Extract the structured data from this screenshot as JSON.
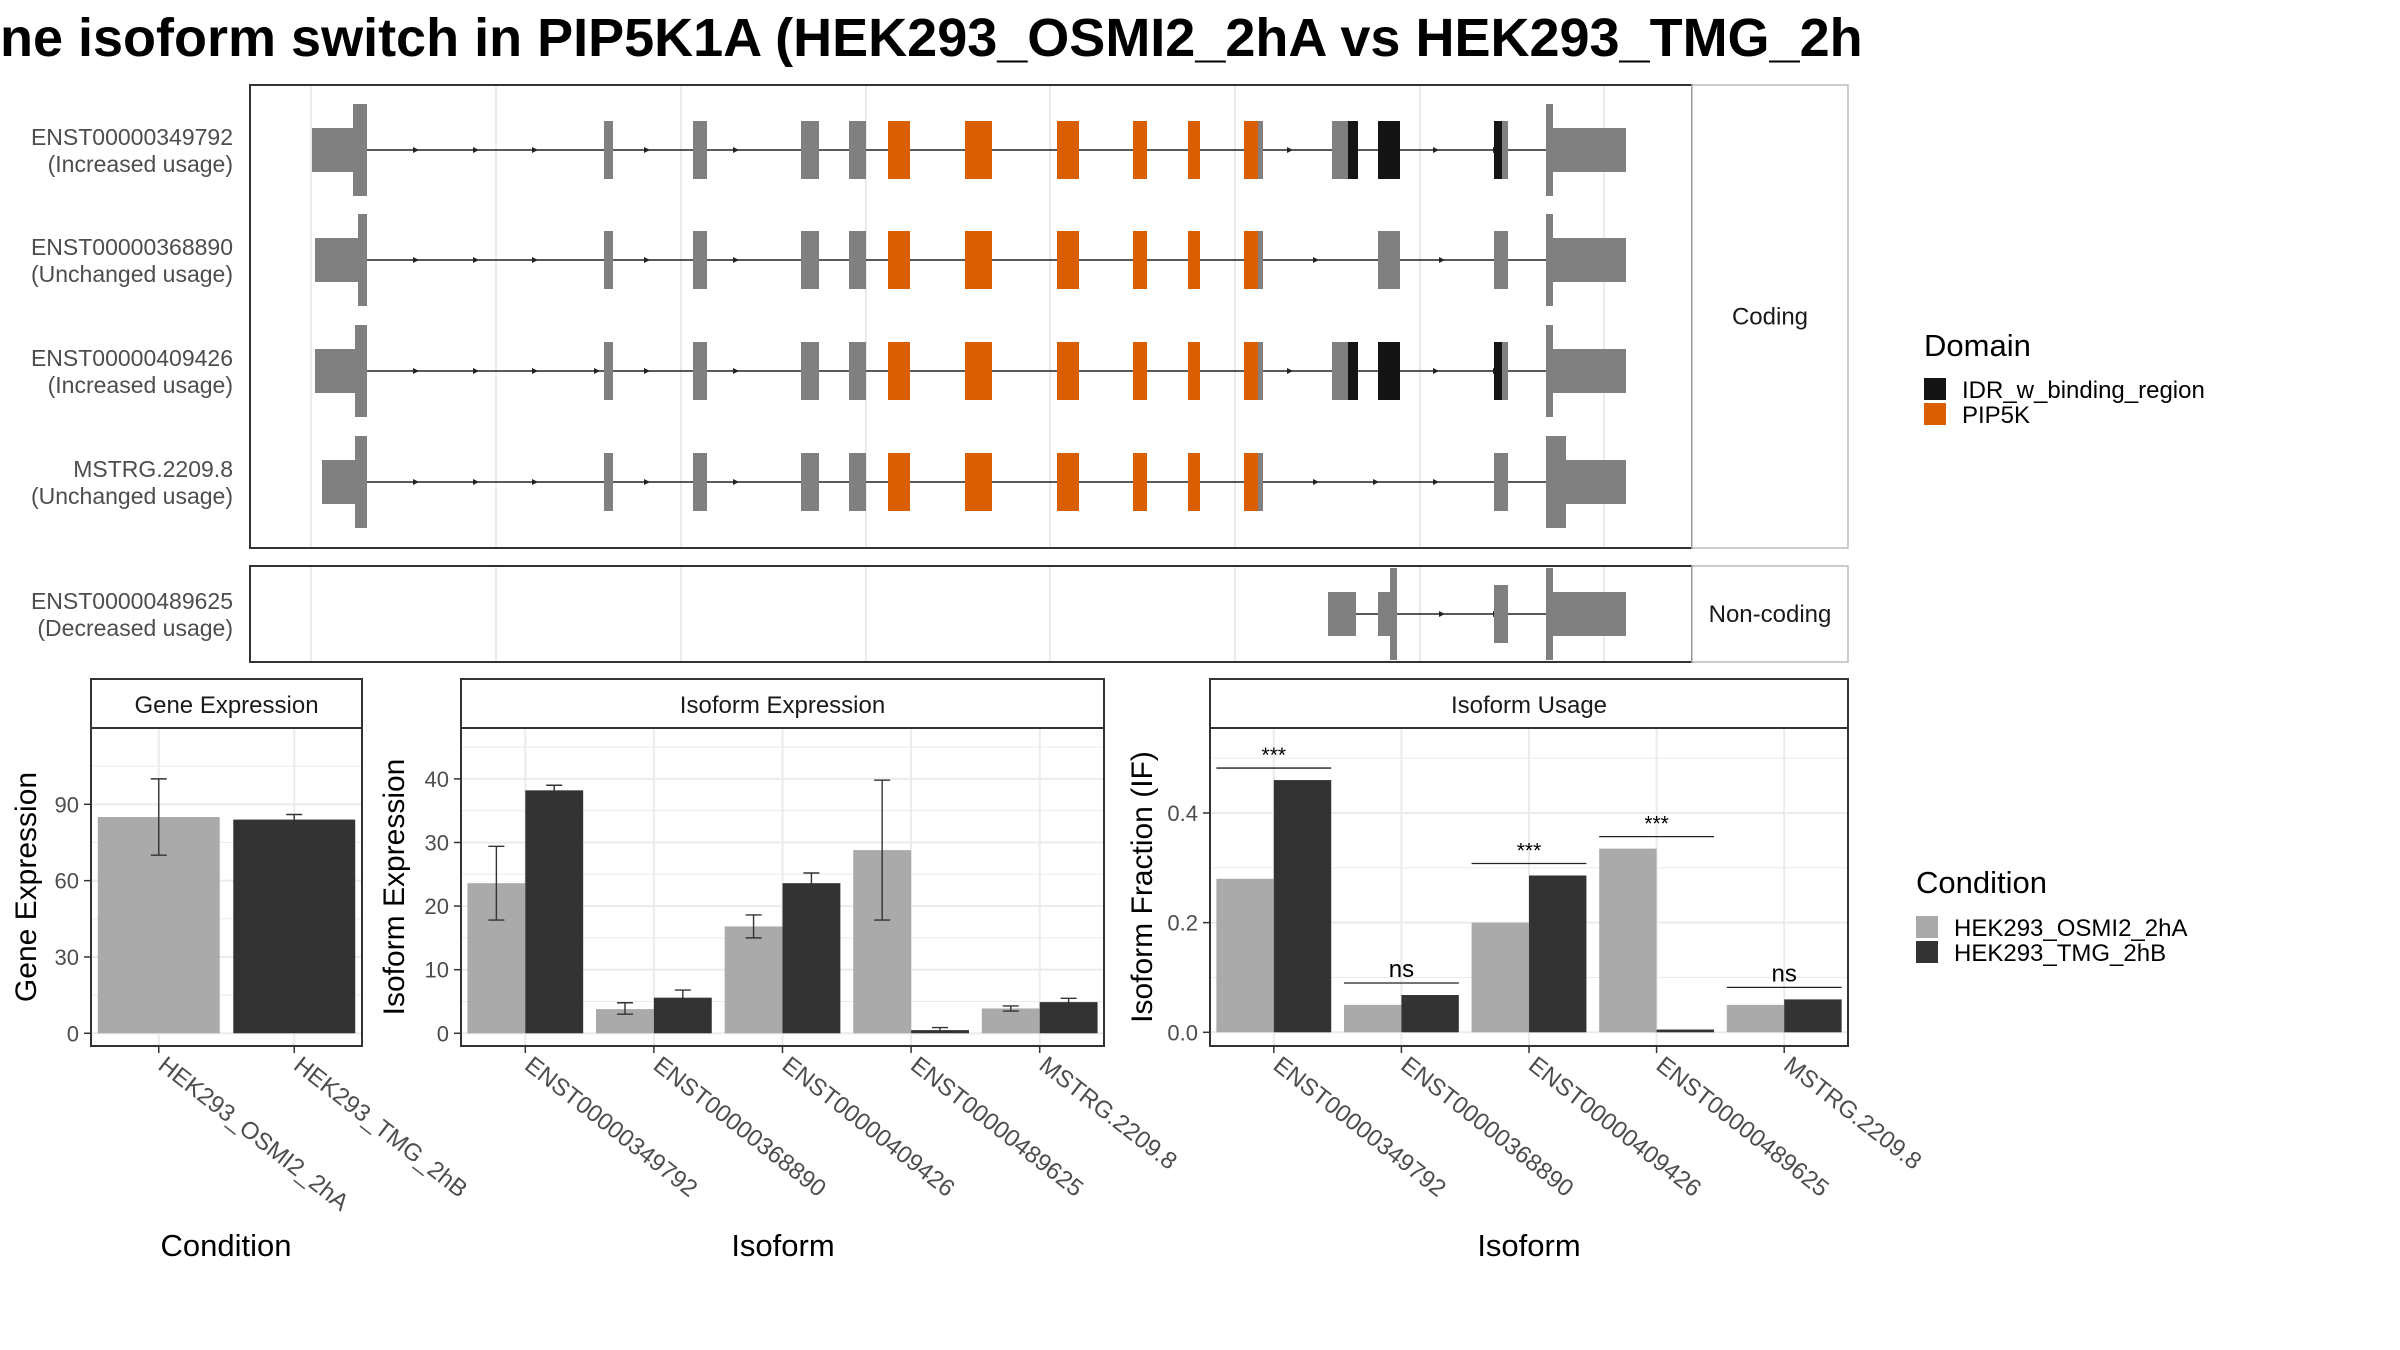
{
  "title": "ne isoform switch in PIP5K1A (HEK293_OSMI2_2hA vs HEK293_TMG_2h",
  "colors": {
    "exon": "#808080",
    "idr": "#141414",
    "pip5k": "#d95f02",
    "light": "#aaaaaa",
    "dark": "#333333",
    "grid": "#ebebeb",
    "frame": "#333333",
    "strip": "#f2f2f2"
  },
  "structure": {
    "coding_label": "Coding",
    "noncoding_label": "Non-coding",
    "legend_title": "Domain",
    "legend_items": [
      {
        "label": "IDR_w_binding_region",
        "color": "#141414"
      },
      {
        "label": "PIP5K",
        "color": "#d95f02"
      }
    ],
    "transcripts": [
      {
        "id": "ENST00000349792",
        "usage": "(Increased usage)",
        "group": "coding"
      },
      {
        "id": "ENST00000368890",
        "usage": "(Unchanged usage)",
        "group": "coding"
      },
      {
        "id": "ENST00000409426",
        "usage": "(Increased usage)",
        "group": "coding"
      },
      {
        "id": "MSTRG.2209.8",
        "usage": "(Unchanged usage)",
        "group": "coding"
      },
      {
        "id": "ENST00000489625",
        "usage": "(Decreased usage)",
        "group": "noncoding"
      }
    ]
  },
  "condition_legend": {
    "title": "Condition",
    "items": [
      {
        "label": "HEK293_OSMI2_2hA",
        "color": "#aaaaaa"
      },
      {
        "label": "HEK293_TMG_2hB",
        "color": "#333333"
      }
    ]
  },
  "chart_data": [
    {
      "type": "bar",
      "title": "Gene Expression",
      "xlabel": "Condition",
      "ylabel": "Gene Expression",
      "categories": [
        "HEK293_OSMI2_2hA",
        "HEK293_TMG_2hB"
      ],
      "values": [
        85,
        84
      ],
      "errors": [
        [
          70,
          100
        ],
        [
          82,
          86
        ]
      ],
      "ylim": [
        -5,
        120
      ],
      "yticks": [
        0,
        30,
        60,
        90
      ],
      "ytick_labels": [
        "0",
        "30",
        "60",
        "90"
      ]
    },
    {
      "type": "bar",
      "title": "Isoform Expression",
      "xlabel": "Isoform",
      "ylabel": "Isoform Expression",
      "categories": [
        "ENST00000349792",
        "ENST00000368890",
        "ENST00000409426",
        "ENST00000489625",
        "MSTRG.2209.8"
      ],
      "series": [
        {
          "name": "HEK293_OSMI2_2hA",
          "values": [
            23.6,
            3.8,
            16.8,
            28.8,
            3.9
          ],
          "errors": [
            [
              17.8,
              29.4
            ],
            [
              3.0,
              4.8
            ],
            [
              15.0,
              18.6
            ],
            [
              17.8,
              39.8
            ],
            [
              3.5,
              4.3
            ]
          ]
        },
        {
          "name": "HEK293_TMG_2hB",
          "values": [
            38.2,
            5.6,
            23.6,
            0.5,
            4.9
          ],
          "errors": [
            [
              37.5,
              39.0
            ],
            [
              4.6,
              6.8
            ],
            [
              22.0,
              25.2
            ],
            [
              0.2,
              0.9
            ],
            [
              4.3,
              5.5
            ]
          ]
        }
      ],
      "ylim": [
        -2,
        48
      ],
      "yticks": [
        0,
        10,
        20,
        30,
        40
      ],
      "ytick_labels": [
        "0",
        "10",
        "20",
        "30",
        "40"
      ]
    },
    {
      "type": "bar",
      "title": "Isoform Usage",
      "xlabel": "Isoform",
      "ylabel": "Isoform Fraction (IF)",
      "categories": [
        "ENST00000349792",
        "ENST00000368890",
        "ENST00000409426",
        "ENST00000489625",
        "MSTRG.2209.8"
      ],
      "series": [
        {
          "name": "HEK293_OSMI2_2hA",
          "values": [
            0.28,
            0.05,
            0.2,
            0.335,
            0.05
          ]
        },
        {
          "name": "HEK293_TMG_2hB",
          "values": [
            0.46,
            0.068,
            0.286,
            0.005,
            0.06
          ]
        }
      ],
      "significance": [
        "***",
        "ns",
        "***",
        "***",
        "ns"
      ],
      "ylim": [
        -0.025,
        0.555
      ],
      "yticks": [
        0,
        0.2,
        0.4
      ],
      "ytick_labels": [
        "0.0",
        "0.2",
        "0.4"
      ]
    }
  ]
}
